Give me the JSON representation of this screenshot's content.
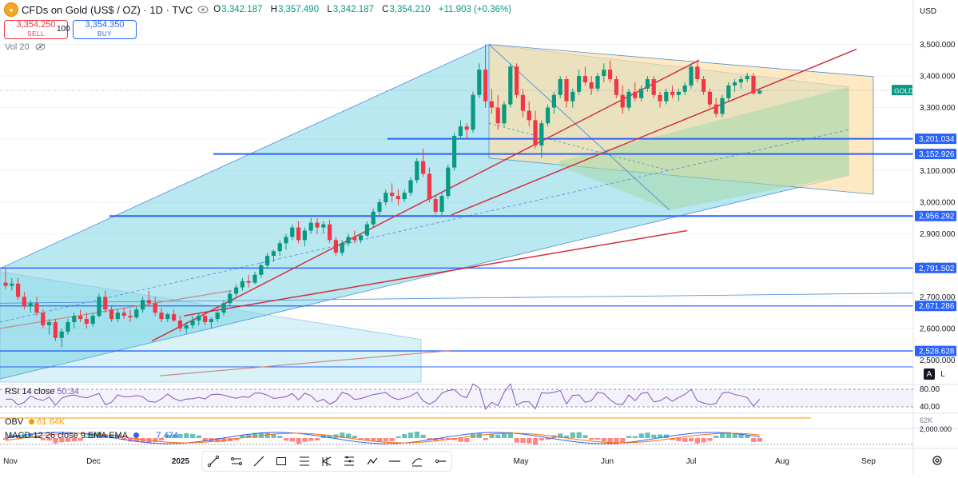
{
  "header": {
    "symbol_title": "CFDs on Gold (US$ / OZ) · 1D · TVC",
    "ohlc": [
      {
        "key": "O",
        "value": "3,342.187"
      },
      {
        "key": "H",
        "value": "3,357.490"
      },
      {
        "key": "L",
        "value": "3,342.187"
      },
      {
        "key": "C",
        "value": "3,354.210"
      }
    ],
    "change": "+11.903 (+0.36%)"
  },
  "trade": {
    "sell_price": "3,354.250",
    "sell_label": "SELL",
    "quantity": "100",
    "buy_price": "3,354.350",
    "buy_label": "BUY"
  },
  "volume_label": "Vol 20",
  "currency": "USD",
  "price_tag": "GOLD",
  "scale_buttons": {
    "auto": "A",
    "log": "L"
  },
  "indicators": {
    "rsi": {
      "label": "RSI 14 close",
      "value": "50.34",
      "levels": [
        "80.00",
        "40.00"
      ]
    },
    "obv": {
      "label": "OBV",
      "value": "61.64K",
      "scale": "62K"
    },
    "macd": {
      "label": "MACD 12 26 close 9 EMA EMA",
      "value": "7.474",
      "partial": "2,000.000"
    }
  },
  "toolbar": {
    "tools": [
      "trend-line",
      "parallel-channel",
      "ray",
      "rectangle",
      "fib-retracement",
      "pitchfork",
      "gann-fan",
      "path",
      "horizontal-line",
      "regression-trend",
      "horizontal-ray"
    ]
  },
  "colors": {
    "up": "#089981",
    "down": "#f23645",
    "blue_line": "#2962ff",
    "red_line": "#d32f3f",
    "channel_fill": "#63cde0",
    "fan_fill": "#ffe0a8",
    "green_fill": "#a6d9a8"
  },
  "chart_data": {
    "type": "candlestick",
    "title": "CFDs on Gold (US$ / OZ) · 1D · TVC",
    "x_ticks": [
      "Nov",
      "Dec",
      "2025",
      "May",
      "Jun",
      "Jul",
      "Aug",
      "Sep"
    ],
    "ylim": [
      2430,
      3575
    ],
    "y_ticks": [
      "3,500.000",
      "3,400.000",
      "3,300.000",
      "3,100.000",
      "3,000.000",
      "2,900.000",
      "2,800.000",
      "2,700.000",
      "2,600.000",
      "2,500.000"
    ],
    "horizontal_levels": [
      {
        "value": 3201.034,
        "label": "3,201.034"
      },
      {
        "value": 3152.926,
        "label": "3,152.926"
      },
      {
        "value": 2956.292,
        "label": "2,956.292"
      },
      {
        "value": 2791.502,
        "label": "2,791.502"
      },
      {
        "value": 2671.286,
        "label": "2,671.286"
      },
      {
        "value": 2528.628,
        "label": "2,528.628"
      }
    ],
    "last_price": 3354.21,
    "candles": [
      [
        2745,
        2790,
        2725,
        2735
      ],
      [
        2735,
        2760,
        2720,
        2742
      ],
      [
        2742,
        2760,
        2690,
        2700
      ],
      [
        2700,
        2715,
        2660,
        2670
      ],
      [
        2670,
        2690,
        2650,
        2680
      ],
      [
        2680,
        2700,
        2640,
        2650
      ],
      [
        2650,
        2660,
        2600,
        2610
      ],
      [
        2610,
        2630,
        2580,
        2620
      ],
      [
        2620,
        2630,
        2560,
        2570
      ],
      [
        2570,
        2600,
        2540,
        2590
      ],
      [
        2590,
        2630,
        2580,
        2620
      ],
      [
        2620,
        2650,
        2600,
        2640
      ],
      [
        2640,
        2660,
        2620,
        2630
      ],
      [
        2630,
        2650,
        2600,
        2615
      ],
      [
        2615,
        2650,
        2605,
        2640
      ],
      [
        2640,
        2710,
        2635,
        2700
      ],
      [
        2700,
        2720,
        2650,
        2660
      ],
      [
        2660,
        2670,
        2620,
        2630
      ],
      [
        2630,
        2660,
        2620,
        2650
      ],
      [
        2650,
        2665,
        2630,
        2640
      ],
      [
        2640,
        2660,
        2620,
        2635
      ],
      [
        2635,
        2670,
        2630,
        2660
      ],
      [
        2660,
        2700,
        2650,
        2690
      ],
      [
        2690,
        2720,
        2670,
        2680
      ],
      [
        2680,
        2700,
        2640,
        2650
      ],
      [
        2650,
        2665,
        2620,
        2630
      ],
      [
        2630,
        2650,
        2620,
        2645
      ],
      [
        2645,
        2660,
        2620,
        2625
      ],
      [
        2625,
        2640,
        2590,
        2600
      ],
      [
        2600,
        2620,
        2585,
        2610
      ],
      [
        2610,
        2640,
        2600,
        2625
      ],
      [
        2625,
        2650,
        2610,
        2640
      ],
      [
        2640,
        2650,
        2610,
        2620
      ],
      [
        2620,
        2635,
        2600,
        2630
      ],
      [
        2630,
        2660,
        2620,
        2650
      ],
      [
        2650,
        2690,
        2640,
        2680
      ],
      [
        2680,
        2720,
        2670,
        2710
      ],
      [
        2710,
        2740,
        2700,
        2730
      ],
      [
        2730,
        2760,
        2720,
        2750
      ],
      [
        2750,
        2770,
        2730,
        2745
      ],
      [
        2745,
        2780,
        2740,
        2770
      ],
      [
        2770,
        2810,
        2760,
        2800
      ],
      [
        2800,
        2840,
        2790,
        2830
      ],
      [
        2830,
        2850,
        2810,
        2845
      ],
      [
        2845,
        2880,
        2830,
        2870
      ],
      [
        2870,
        2900,
        2850,
        2890
      ],
      [
        2890,
        2930,
        2880,
        2920
      ],
      [
        2920,
        2940,
        2870,
        2880
      ],
      [
        2880,
        2920,
        2860,
        2910
      ],
      [
        2910,
        2950,
        2900,
        2935
      ],
      [
        2935,
        2950,
        2900,
        2920
      ],
      [
        2920,
        2940,
        2900,
        2930
      ],
      [
        2930,
        2945,
        2870,
        2880
      ],
      [
        2880,
        2890,
        2830,
        2840
      ],
      [
        2840,
        2880,
        2830,
        2870
      ],
      [
        2870,
        2900,
        2860,
        2890
      ],
      [
        2890,
        2910,
        2870,
        2880
      ],
      [
        2880,
        2900,
        2870,
        2895
      ],
      [
        2895,
        2940,
        2890,
        2930
      ],
      [
        2930,
        2980,
        2920,
        2970
      ],
      [
        2970,
        3010,
        2960,
        3000
      ],
      [
        3000,
        3040,
        2990,
        3030
      ],
      [
        3030,
        3060,
        3000,
        3020
      ],
      [
        3020,
        3040,
        2990,
        3010
      ],
      [
        3010,
        3040,
        3000,
        3030
      ],
      [
        3030,
        3080,
        3020,
        3070
      ],
      [
        3070,
        3140,
        3060,
        3130
      ],
      [
        3130,
        3170,
        3080,
        3090
      ],
      [
        3090,
        3110,
        3000,
        3010
      ],
      [
        3010,
        3020,
        2960,
        2970
      ],
      [
        2970,
        3030,
        2960,
        3020
      ],
      [
        3020,
        3120,
        3010,
        3110
      ],
      [
        3110,
        3220,
        3100,
        3210
      ],
      [
        3210,
        3260,
        3200,
        3240
      ],
      [
        3240,
        3250,
        3200,
        3230
      ],
      [
        3230,
        3350,
        3220,
        3340
      ],
      [
        3340,
        3440,
        3330,
        3420
      ],
      [
        3420,
        3500,
        3300,
        3320
      ],
      [
        3320,
        3360,
        3280,
        3300
      ],
      [
        3300,
        3340,
        3230,
        3250
      ],
      [
        3250,
        3320,
        3240,
        3310
      ],
      [
        3310,
        3440,
        3300,
        3430
      ],
      [
        3430,
        3440,
        3330,
        3340
      ],
      [
        3340,
        3360,
        3270,
        3290
      ],
      [
        3290,
        3320,
        3240,
        3260
      ],
      [
        3260,
        3290,
        3170,
        3180
      ],
      [
        3180,
        3260,
        3140,
        3250
      ],
      [
        3250,
        3310,
        3240,
        3300
      ],
      [
        3300,
        3350,
        3280,
        3340
      ],
      [
        3340,
        3400,
        3330,
        3390
      ],
      [
        3390,
        3400,
        3300,
        3320
      ],
      [
        3320,
        3360,
        3300,
        3350
      ],
      [
        3350,
        3420,
        3340,
        3400
      ],
      [
        3400,
        3430,
        3370,
        3380
      ],
      [
        3380,
        3400,
        3340,
        3360
      ],
      [
        3360,
        3410,
        3350,
        3400
      ],
      [
        3400,
        3440,
        3380,
        3420
      ],
      [
        3420,
        3450,
        3380,
        3390
      ],
      [
        3390,
        3400,
        3330,
        3340
      ],
      [
        3340,
        3370,
        3280,
        3300
      ],
      [
        3300,
        3360,
        3290,
        3350
      ],
      [
        3350,
        3380,
        3320,
        3330
      ],
      [
        3330,
        3370,
        3320,
        3360
      ],
      [
        3360,
        3400,
        3350,
        3390
      ],
      [
        3390,
        3400,
        3330,
        3340
      ],
      [
        3340,
        3350,
        3300,
        3320
      ],
      [
        3320,
        3360,
        3310,
        3350
      ],
      [
        3350,
        3370,
        3330,
        3340
      ],
      [
        3340,
        3360,
        3320,
        3350
      ],
      [
        3350,
        3380,
        3340,
        3370
      ],
      [
        3370,
        3440,
        3360,
        3430
      ],
      [
        3430,
        3450,
        3380,
        3390
      ],
      [
        3390,
        3400,
        3340,
        3350
      ],
      [
        3350,
        3360,
        3300,
        3310
      ],
      [
        3310,
        3330,
        3270,
        3280
      ],
      [
        3280,
        3340,
        3270,
        3330
      ],
      [
        3330,
        3380,
        3320,
        3370
      ],
      [
        3370,
        3390,
        3350,
        3380
      ],
      [
        3380,
        3400,
        3360,
        3390
      ],
      [
        3390,
        3410,
        3380,
        3400
      ],
      [
        3400,
        3410,
        3340,
        3345
      ],
      [
        3345,
        3357,
        3342,
        3354
      ]
    ]
  }
}
